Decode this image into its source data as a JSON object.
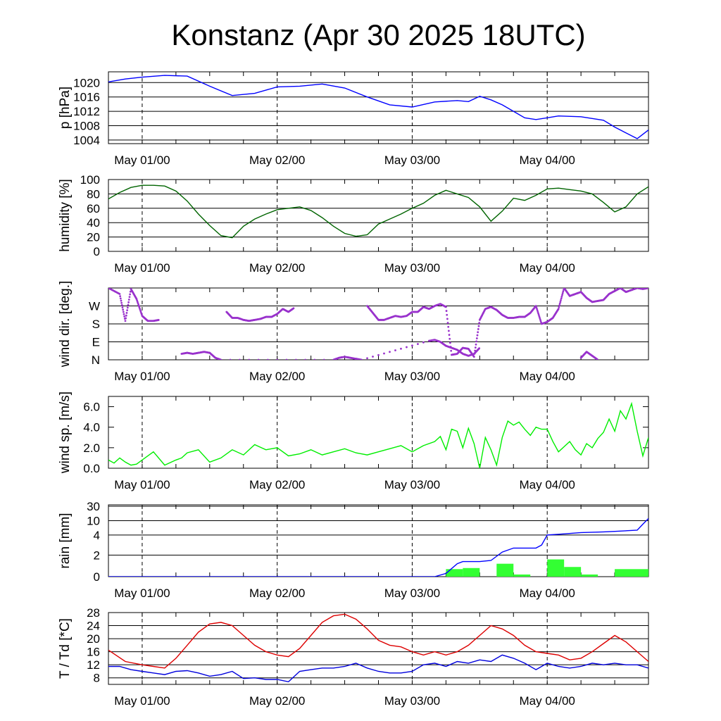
{
  "title": "Konstanz (Apr 30 2025 18UTC)",
  "x_tick_labels": [
    "May 01/00",
    "May 02/00",
    "May 03/00",
    "May 04/00"
  ],
  "chart_data": [
    {
      "id": "pressure",
      "type": "line",
      "ylabel": "p [hPa]",
      "ylim": [
        1003,
        1023
      ],
      "grid": true,
      "yticks": [
        1004,
        1008,
        1012,
        1016,
        1020
      ],
      "ytick_labels": [
        "1004",
        "1008",
        "1012",
        "1016",
        "1020"
      ],
      "series": [
        {
          "color": "#0000ff",
          "x": [
            0,
            3,
            6,
            10,
            14,
            18,
            22,
            26,
            30,
            34,
            38,
            42,
            46,
            50,
            54,
            58,
            62,
            64,
            66,
            68,
            70,
            72,
            74,
            76,
            78,
            80,
            84,
            88,
            90,
            92,
            94,
            96
          ],
          "y": [
            1020.2,
            1021,
            1021.5,
            1022,
            1021.8,
            1019,
            1016.4,
            1017,
            1018.8,
            1019,
            1019.6,
            1018.5,
            1016,
            1013.8,
            1013.2,
            1014.6,
            1015,
            1014.7,
            1016.2,
            1015.2,
            1013.8,
            1012,
            1010.2,
            1009.7,
            1010.2,
            1010.7,
            1010.5,
            1009.5,
            1007.6,
            1006,
            1004.4,
            1006.8
          ]
        }
      ]
    },
    {
      "id": "humidity",
      "type": "line",
      "ylabel": "humidity [%]",
      "ylim": [
        0,
        100
      ],
      "grid": true,
      "yticks": [
        0,
        20,
        40,
        60,
        80,
        100
      ],
      "ytick_labels": [
        "0",
        "20",
        "40",
        "60",
        "80",
        "100"
      ],
      "series": [
        {
          "color": "#006400",
          "x": [
            0,
            2,
            4,
            6,
            8,
            10,
            12,
            14,
            16,
            18,
            20,
            22,
            24,
            26,
            28,
            30,
            32,
            34,
            36,
            38,
            40,
            42,
            44,
            46,
            48,
            50,
            52,
            54,
            56,
            58,
            60,
            62,
            64,
            66,
            68,
            70,
            72,
            74,
            76,
            78,
            80,
            82,
            84,
            86,
            88,
            90,
            92,
            94,
            96
          ],
          "y": [
            73,
            82,
            89,
            92,
            92,
            91,
            84,
            70,
            52,
            36,
            22,
            19,
            35,
            45,
            52,
            58,
            60,
            62,
            57,
            47,
            35,
            25,
            21,
            23,
            38,
            45,
            52,
            60,
            67,
            78,
            85,
            80,
            75,
            62,
            42,
            56,
            74,
            71,
            78,
            87,
            88,
            86,
            84,
            80,
            68,
            55,
            62,
            80,
            90
          ]
        }
      ]
    },
    {
      "id": "wind_direction",
      "type": "scatter",
      "ylabel": "wind dir. [deg.]",
      "ylim": [
        0,
        360
      ],
      "grid": true,
      "yticks": [
        0,
        90,
        180,
        270
      ],
      "ytick_labels": [
        "N",
        "E",
        "S",
        "W"
      ],
      "series": [
        {
          "color": "#9932cc",
          "x": [
            0,
            2,
            3,
            4,
            5,
            6,
            7,
            8,
            9,
            10,
            11,
            12,
            13,
            14,
            15,
            16,
            17,
            18,
            19,
            20,
            21,
            22,
            23,
            24,
            25,
            26,
            27,
            28,
            29,
            30,
            31,
            32,
            33,
            34,
            35,
            36,
            37,
            38,
            39,
            40,
            41,
            42,
            43,
            44,
            45,
            46,
            47,
            48,
            49,
            50,
            51,
            52,
            53,
            54,
            55,
            56,
            57,
            58,
            59,
            60,
            61,
            62,
            63,
            64,
            65,
            66,
            67,
            68,
            69,
            70,
            71,
            72,
            73,
            74,
            75,
            76,
            77,
            78,
            79,
            80,
            81,
            82,
            83,
            84,
            85,
            86,
            87,
            88,
            89,
            90,
            91,
            92,
            93,
            94,
            95,
            96
          ],
          "y": [
            360,
            330,
            195,
            355,
            305,
            220,
            195,
            195,
            200,
            null,
            null,
            null,
            null,
            null,
            null,
            null,
            null,
            null,
            null,
            null,
            240,
            210,
            210,
            200,
            195,
            200,
            205,
            215,
            215,
            230,
            255,
            240,
            260,
            null,
            null,
            null,
            null,
            null,
            null,
            null,
            null,
            null,
            null,
            null,
            null,
            270,
            235,
            200,
            200,
            210,
            220,
            215,
            220,
            240,
            240,
            265,
            255,
            270,
            280,
            265,
            25,
            30,
            60,
            55,
            15,
            200,
            255,
            265,
            250,
            225,
            210,
            210,
            215,
            215,
            235,
            270,
            180,
            190,
            210,
            255,
            360,
            320,
            330,
            340,
            310,
            290,
            295,
            300,
            330,
            345,
            360,
            340,
            350,
            360,
            355,
            360
          ]
        }
      ],
      "extra_points": {
        "x": [
          13,
          14,
          15,
          16,
          17,
          18,
          19,
          20,
          40,
          41,
          42,
          43,
          44,
          45,
          57,
          58,
          59,
          60,
          61,
          62,
          63,
          64,
          65,
          66,
          67,
          68,
          69,
          70,
          71,
          72,
          73,
          74,
          75,
          76,
          77,
          78,
          79,
          80,
          81,
          82,
          83,
          84,
          85,
          86,
          87,
          88,
          89,
          90,
          91,
          92,
          93,
          94,
          95,
          96
        ],
        "y": [
          30,
          35,
          30,
          35,
          40,
          35,
          10,
          0,
          0,
          10,
          15,
          10,
          5,
          0,
          95,
          100,
          90,
          70,
          60,
          50,
          30,
          20,
          30,
          60,
          null,
          null,
          null,
          null,
          null,
          null,
          null,
          null,
          null,
          null,
          null,
          null,
          null,
          null,
          null,
          null,
          null,
          10,
          40,
          20,
          0,
          null,
          null,
          null,
          null,
          null,
          null,
          null,
          null,
          null
        ]
      }
    },
    {
      "id": "wind_speed",
      "type": "line",
      "ylabel": "wind sp. [m/s]",
      "ylim": [
        0,
        7
      ],
      "grid": false,
      "yticks": [
        0,
        2,
        4,
        6
      ],
      "ytick_labels": [
        "0.0",
        "2.0",
        "4.0",
        "6.0"
      ],
      "series": [
        {
          "color": "#00ee00",
          "x": [
            0,
            1,
            2,
            3,
            4,
            5,
            6,
            8,
            10,
            12,
            13,
            14,
            16,
            18,
            20,
            22,
            24,
            26,
            28,
            30,
            32,
            34,
            36,
            38,
            40,
            42,
            44,
            46,
            48,
            50,
            52,
            54,
            56,
            58,
            59,
            60,
            61,
            62,
            63,
            64,
            65,
            66,
            67,
            68,
            69,
            70,
            71,
            72,
            73,
            74,
            75,
            76,
            77,
            78,
            79,
            80,
            81,
            82,
            83,
            84,
            85,
            86,
            87,
            88,
            89,
            90,
            91,
            92,
            93,
            94,
            95,
            96
          ],
          "y": [
            0.8,
            0.5,
            1.0,
            0.6,
            0.3,
            0.4,
            0.8,
            1.6,
            0.3,
            0.8,
            1.0,
            1.5,
            1.8,
            0.6,
            1.0,
            1.8,
            1.3,
            2.3,
            1.8,
            2.0,
            1.2,
            1.4,
            1.8,
            1.3,
            1.6,
            1.9,
            1.5,
            1.3,
            1.6,
            1.9,
            2.2,
            1.6,
            2.2,
            2.6,
            3.1,
            1.8,
            3.8,
            3.6,
            2.0,
            3.9,
            2.4,
            0.0,
            3.0,
            1.8,
            0.3,
            3.0,
            4.6,
            4.2,
            4.5,
            3.8,
            3.2,
            4.0,
            3.8,
            3.8,
            2.6,
            1.6,
            2.1,
            2.6,
            1.8,
            1.3,
            2.4,
            2.0,
            2.9,
            3.5,
            4.8,
            3.6,
            5.6,
            4.8,
            6.3,
            3.6,
            1.2,
            3.0
          ]
        }
      ]
    },
    {
      "id": "rain",
      "type": "bar+line",
      "ylabel": "rain [mm]",
      "ylim": [
        0,
        30
      ],
      "grid": true,
      "yticks": [
        0,
        2,
        4,
        10,
        30
      ],
      "ytick_labels": [
        "0",
        "2",
        "4",
        "10",
        "30"
      ],
      "bars": {
        "color": "#33ff33",
        "x_start": [
          60,
          63,
          69,
          72,
          78,
          81,
          84,
          90
        ],
        "x_end": [
          63,
          66,
          72,
          75,
          81,
          84,
          87,
          96
        ],
        "values": [
          0.7,
          0.8,
          1.2,
          0.2,
          1.6,
          0.9,
          0.2,
          0.7
        ]
      },
      "series": [
        {
          "color": "#0000ff",
          "x": [
            0,
            58,
            60,
            62,
            63,
            64,
            66,
            68,
            70,
            72,
            76,
            77,
            78,
            80,
            84,
            88,
            90,
            94,
            95,
            96
          ],
          "y": [
            0,
            0,
            0.3,
            1.2,
            1.4,
            1.4,
            1.4,
            1.5,
            2.3,
            2.7,
            2.7,
            3.0,
            4.0,
            4.3,
            5.0,
            5.3,
            5.5,
            6.0,
            8.5,
            13.0
          ]
        }
      ]
    },
    {
      "id": "temperature",
      "type": "line",
      "ylabel": "T / Td [*C]",
      "ylim": [
        6,
        28
      ],
      "grid": true,
      "yticks": [
        8,
        12,
        16,
        20,
        24,
        28
      ],
      "ytick_labels": [
        "8",
        "12",
        "16",
        "20",
        "24",
        "28"
      ],
      "series": [
        {
          "name": "T",
          "color": "#dd0000",
          "x": [
            0,
            3,
            6,
            8,
            10,
            12,
            14,
            16,
            18,
            20,
            22,
            24,
            26,
            28,
            30,
            32,
            34,
            36,
            38,
            40,
            42,
            44,
            46,
            48,
            50,
            52,
            54,
            56,
            58,
            60,
            62,
            64,
            66,
            68,
            70,
            72,
            74,
            76,
            78,
            80,
            82,
            84,
            86,
            88,
            90,
            92,
            94,
            96
          ],
          "y": [
            16.5,
            13,
            12,
            11.5,
            11,
            14,
            18,
            22,
            24.5,
            25,
            24,
            21,
            18,
            16,
            15,
            14.5,
            17,
            21,
            25,
            27,
            27.5,
            26,
            23,
            19.5,
            18,
            17.5,
            16,
            15,
            16,
            15,
            16,
            18,
            21,
            24,
            23,
            21,
            18,
            16,
            15.5,
            15,
            13.5,
            14,
            16,
            18.5,
            21,
            19,
            16,
            13
          ]
        },
        {
          "name": "Td",
          "color": "#0000dd",
          "x": [
            0,
            2,
            4,
            6,
            8,
            10,
            12,
            14,
            16,
            18,
            20,
            22,
            24,
            26,
            28,
            30,
            32,
            34,
            36,
            38,
            40,
            42,
            44,
            46,
            48,
            50,
            52,
            54,
            56,
            58,
            60,
            62,
            64,
            66,
            68,
            70,
            72,
            74,
            76,
            78,
            80,
            82,
            84,
            86,
            88,
            90,
            92,
            94,
            96
          ],
          "y": [
            11.5,
            11.5,
            10.5,
            10,
            9.5,
            9,
            10,
            10.2,
            9.5,
            8.5,
            9,
            10,
            7.8,
            8,
            7.5,
            7.5,
            6.8,
            10,
            10.5,
            11,
            11,
            11.5,
            12.5,
            11,
            10,
            9.5,
            9.5,
            10,
            12,
            12.5,
            11.5,
            13,
            12.5,
            13.5,
            13,
            15,
            14,
            12.5,
            10.5,
            12.5,
            11.5,
            11,
            11.5,
            12.5,
            12,
            12.5,
            12,
            12,
            11
          ]
        }
      ]
    }
  ]
}
